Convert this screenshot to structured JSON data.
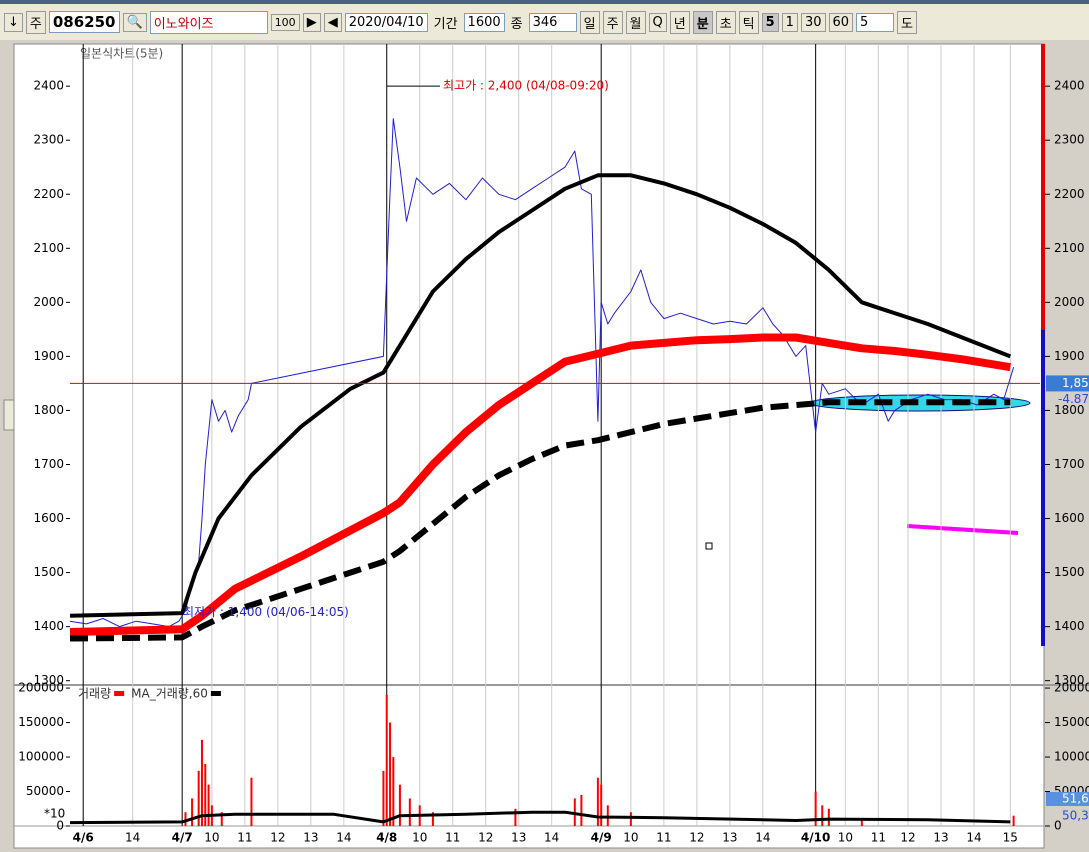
{
  "toolbar": {
    "items": [
      "↓",
      "주",
      "086250",
      "이노와이즈",
      "100",
      "2020/04/10",
      "기간",
      "1600",
      "종",
      "346",
      "일",
      "주",
      "월",
      "Q",
      "년",
      "분",
      "초",
      "틱",
      "5",
      "1",
      "30",
      "60",
      "5",
      "도"
    ]
  },
  "chart_data": [
    {
      "type": "line",
      "title": "일본식차트(5분)",
      "annotations": [
        "최고가 : 2,400 (04/08-09:20)",
        "최저가 : 1,400 (04/06-14:05)"
      ],
      "right_labels": [
        "1,85",
        "-4.87"
      ],
      "xlim": [
        0,
        29.4
      ],
      "ylim": [
        1292,
        2478
      ],
      "xticks": [
        {
          "value": 0.4,
          "label": "4/6"
        },
        {
          "value": 1.9,
          "label": "14"
        },
        {
          "value": 3.4,
          "label": "4/7"
        },
        {
          "value": 4.3,
          "label": "10"
        },
        {
          "value": 5.3,
          "label": "11"
        },
        {
          "value": 6.3,
          "label": "12"
        },
        {
          "value": 7.3,
          "label": "13"
        },
        {
          "value": 8.3,
          "label": "14"
        },
        {
          "value": 9.6,
          "label": "4/8"
        },
        {
          "value": 10.6,
          "label": "10"
        },
        {
          "value": 11.6,
          "label": "11"
        },
        {
          "value": 12.6,
          "label": "12"
        },
        {
          "value": 13.6,
          "label": "13"
        },
        {
          "value": 14.6,
          "label": "14"
        },
        {
          "value": 16.1,
          "label": "4/9"
        },
        {
          "value": 17.0,
          "label": "10"
        },
        {
          "value": 18.0,
          "label": "11"
        },
        {
          "value": 19.0,
          "label": "12"
        },
        {
          "value": 20.0,
          "label": "13"
        },
        {
          "value": 21.0,
          "label": "14"
        },
        {
          "value": 22.6,
          "label": "4/10"
        },
        {
          "value": 23.5,
          "label": "10"
        },
        {
          "value": 24.5,
          "label": "11"
        },
        {
          "value": 25.4,
          "label": "12"
        },
        {
          "value": 26.4,
          "label": "13"
        },
        {
          "value": 27.4,
          "label": "14"
        },
        {
          "value": 28.5,
          "label": "15"
        }
      ],
      "yticks": [
        1300,
        1400,
        1500,
        1600,
        1700,
        1800,
        1900,
        2000,
        2100,
        2200,
        2300,
        2400
      ],
      "series": [
        {
          "color": "#1f1fd0",
          "width": 1,
          "dash": false,
          "x": [
            0,
            0.5,
            1,
            1.5,
            2,
            2.5,
            3,
            3.3,
            3.5,
            3.7,
            3.9,
            4.0,
            4.1,
            4.3,
            4.5,
            4.7,
            4.9,
            5.1,
            5.4,
            5.5,
            9.5,
            9.6,
            9.7,
            9.8,
            10,
            10.2,
            10.5,
            11,
            11.5,
            12,
            12.5,
            13,
            13.5,
            14,
            14.5,
            15,
            15.3,
            15.5,
            15.8,
            16.0,
            16.1,
            16.3,
            16.5,
            17,
            17.3,
            17.6,
            18,
            18.5,
            19,
            19.5,
            20,
            20.5,
            21,
            21.3,
            21.6,
            22,
            22.3,
            22.6,
            22.8,
            23,
            23.5,
            24,
            24.5,
            24.8,
            25,
            25.5,
            26,
            26.5,
            27,
            27.5,
            28,
            28.3,
            28.6
          ],
          "values": [
            1410,
            1405,
            1415,
            1400,
            1410,
            1405,
            1400,
            1410,
            1430,
            1480,
            1520,
            1600,
            1700,
            1820,
            1780,
            1800,
            1760,
            1790,
            1820,
            1850,
            1900,
            2050,
            2200,
            2340,
            2250,
            2150,
            2230,
            2200,
            2220,
            2190,
            2230,
            2200,
            2190,
            2210,
            2230,
            2250,
            2280,
            2210,
            2200,
            1780,
            2000,
            1960,
            1980,
            2020,
            2060,
            2000,
            1970,
            1980,
            1970,
            1960,
            1965,
            1960,
            1990,
            1960,
            1940,
            1900,
            1920,
            1760,
            1850,
            1830,
            1840,
            1810,
            1830,
            1780,
            1800,
            1820,
            1830,
            1820,
            1820,
            1810,
            1830,
            1820,
            1880
          ]
        },
        {
          "color": "#000000",
          "width": 4,
          "dash": false,
          "x": [
            0,
            3.4,
            3.8,
            4.5,
            5.5,
            7,
            8.5,
            9.5,
            10,
            11,
            12,
            13,
            14,
            15,
            16,
            17,
            18,
            19,
            20,
            21,
            22,
            23,
            24,
            24.5,
            26,
            28.5
          ],
          "values": [
            1420,
            1425,
            1500,
            1600,
            1680,
            1770,
            1840,
            1870,
            1920,
            2020,
            2080,
            2130,
            2170,
            2210,
            2235,
            2235,
            2220,
            2200,
            2175,
            2145,
            2110,
            2060,
            2000,
            1990,
            1960,
            1900
          ]
        },
        {
          "color": "#ff0000",
          "width": 8,
          "dash": false,
          "x": [
            0,
            3.4,
            4,
            5,
            7,
            9.5,
            10,
            11,
            12,
            13,
            14,
            15,
            16,
            17,
            18,
            19,
            20,
            21,
            22,
            23,
            24,
            25,
            26,
            27,
            28.5
          ],
          "values": [
            1390,
            1395,
            1420,
            1470,
            1530,
            1610,
            1630,
            1700,
            1760,
            1810,
            1850,
            1890,
            1905,
            1920,
            1925,
            1930,
            1932,
            1935,
            1935,
            1925,
            1915,
            1910,
            1903,
            1895,
            1880
          ]
        },
        {
          "color": "#000000",
          "width": 6,
          "dash": true,
          "x": [
            0,
            3.4,
            4,
            5,
            7,
            9.5,
            10,
            11,
            12,
            13,
            14,
            15,
            16,
            17,
            18,
            19,
            20,
            21,
            22,
            23,
            24,
            25,
            27,
            28.5
          ],
          "values": [
            1378,
            1380,
            1400,
            1430,
            1470,
            1520,
            1540,
            1590,
            1640,
            1680,
            1710,
            1735,
            1745,
            1760,
            1775,
            1785,
            1795,
            1805,
            1810,
            1815,
            1815,
            1815,
            1815,
            1815
          ]
        }
      ]
    },
    {
      "type": "bar",
      "notes": [
        "*10",
        "51,6",
        "50,3"
      ],
      "xlim": [
        0,
        29.4
      ],
      "ylim": [
        0,
        203000
      ],
      "yticks": [
        0,
        50000,
        100000,
        150000,
        200000
      ],
      "series": [
        {
          "name": "거래량",
          "color": "#ff0000",
          "kind": "bar",
          "x": [
            3.5,
            3.7,
            3.9,
            4.0,
            4.1,
            4.2,
            4.3,
            4.6,
            5.5,
            9.5,
            9.6,
            9.7,
            9.8,
            10,
            10.3,
            10.6,
            11,
            13.5,
            15.3,
            15.5,
            16.0,
            16.1,
            16.3,
            17,
            22.6,
            22.8,
            23,
            24,
            28.6
          ],
          "values": [
            20000,
            40000,
            80000,
            125000,
            90000,
            60000,
            30000,
            20000,
            70000,
            80000,
            190000,
            150000,
            100000,
            60000,
            40000,
            30000,
            20000,
            25000,
            40000,
            45000,
            70000,
            60000,
            30000,
            20000,
            50000,
            30000,
            25000,
            10000,
            15000
          ]
        },
        {
          "name": "MA_거래량,60",
          "color": "#000000",
          "kind": "line",
          "x": [
            0,
            3.4,
            4,
            5,
            8,
            9.5,
            10,
            12,
            14,
            15,
            16,
            18,
            22,
            23,
            26,
            28.5
          ],
          "values": [
            5000,
            6000,
            15000,
            17000,
            17000,
            6000,
            15000,
            17000,
            20000,
            20000,
            13000,
            12000,
            8000,
            10000,
            9000,
            6000
          ]
        }
      ]
    }
  ]
}
